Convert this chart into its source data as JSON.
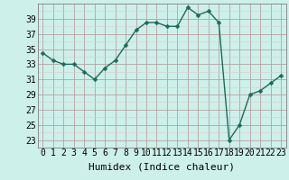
{
  "x": [
    0,
    1,
    2,
    3,
    4,
    5,
    6,
    7,
    8,
    9,
    10,
    11,
    12,
    13,
    14,
    15,
    16,
    17,
    18,
    19,
    20,
    21,
    22,
    23
  ],
  "y": [
    34.5,
    33.5,
    33.0,
    33.0,
    32.0,
    31.0,
    32.5,
    33.5,
    35.5,
    37.5,
    38.5,
    38.5,
    38.0,
    38.0,
    40.5,
    39.5,
    40.0,
    38.5,
    23.0,
    25.0,
    29.0,
    29.5,
    30.5,
    31.5
  ],
  "line_color": "#1a6b5a",
  "marker_color": "#1a6b5a",
  "bg_color": "#cdf0ea",
  "grid_major_color": "#b8a0a0",
  "grid_minor_color": "#dcc8c8",
  "xlabel": "Humidex (Indice chaleur)",
  "ylim": [
    22,
    41
  ],
  "xlim": [
    -0.5,
    23.5
  ],
  "yticks": [
    23,
    25,
    27,
    29,
    31,
    33,
    35,
    37,
    39
  ],
  "xticks": [
    0,
    1,
    2,
    3,
    4,
    5,
    6,
    7,
    8,
    9,
    10,
    11,
    12,
    13,
    14,
    15,
    16,
    17,
    18,
    19,
    20,
    21,
    22,
    23
  ],
  "xlabel_fontsize": 8,
  "tick_fontsize": 7,
  "linewidth": 1.0,
  "markersize": 2.5
}
